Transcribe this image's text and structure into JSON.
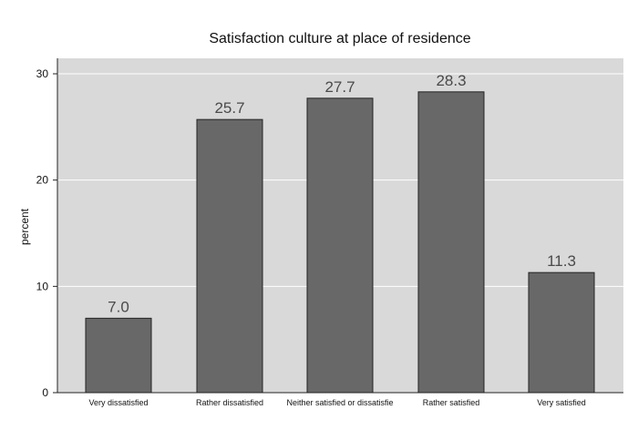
{
  "chart_data": {
    "type": "bar",
    "title": "Satisfaction culture at place of residence",
    "xlabel": "",
    "ylabel": "percent",
    "categories": [
      "Very dissatisfied",
      "Rather dissatisfied",
      "Neither satisfied or dissatisfie",
      "Rather satisfied",
      "Very satisfied"
    ],
    "values": [
      7.0,
      25.7,
      27.7,
      28.3,
      11.3
    ],
    "data_labels": [
      "7.0",
      "25.7",
      "27.7",
      "28.3",
      "11.3"
    ],
    "ylim": [
      0,
      30
    ],
    "yticks": [
      0,
      10,
      20,
      30
    ],
    "ytick_labels": [
      "0",
      "10",
      "20",
      "30"
    ],
    "grid": true,
    "legend": "none",
    "colors": {
      "bar_fill": "#686868",
      "bar_stroke": "#222222",
      "plot_background": "#d9d9d9",
      "gridline": "#ffffff",
      "text": "#111111",
      "data_label": "#4a4a4a"
    }
  }
}
